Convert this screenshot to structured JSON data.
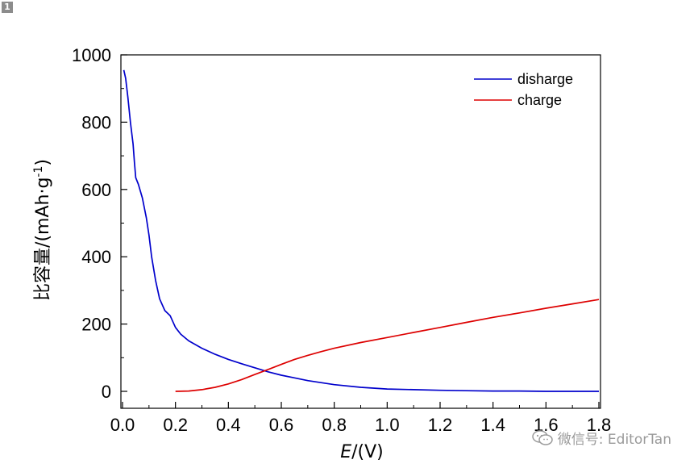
{
  "badge": "1",
  "watermark": {
    "text": "微信号: EditorTan",
    "icon": "wechat-icon"
  },
  "chart_data": {
    "type": "line",
    "xlabel_italic": "E",
    "xlabel_unit": "/(V)",
    "ylabel_main": "比容量/(mAh·g",
    "ylabel_sup": "-1",
    "ylabel_close": ")",
    "xlim": [
      0.0,
      1.8
    ],
    "ylim": [
      0,
      1000
    ],
    "xticks": [
      0.0,
      0.2,
      0.4,
      0.6,
      0.8,
      1.0,
      1.2,
      1.4,
      1.6,
      1.8
    ],
    "xtick_labels": [
      "0.0",
      "0.2",
      "0.4",
      "0.6",
      "0.8",
      "1.0",
      "1.2",
      "1.4",
      "1.6",
      "1.8"
    ],
    "yticks": [
      0,
      200,
      400,
      600,
      800,
      1000
    ],
    "ytick_labels": [
      "0",
      "200",
      "400",
      "600",
      "800",
      "1000"
    ],
    "legend_position": "top-right",
    "grid": false,
    "series": [
      {
        "name": "disharge",
        "color": "#0000cc",
        "x": [
          0.005,
          0.012,
          0.02,
          0.03,
          0.04,
          0.045,
          0.05,
          0.06,
          0.075,
          0.09,
          0.1,
          0.11,
          0.125,
          0.14,
          0.16,
          0.18,
          0.2,
          0.22,
          0.25,
          0.3,
          0.35,
          0.4,
          0.45,
          0.5,
          0.55,
          0.6,
          0.65,
          0.7,
          0.8,
          0.9,
          1.0,
          1.1,
          1.2,
          1.3,
          1.4,
          1.5,
          1.6,
          1.7,
          1.8
        ],
        "y": [
          955,
          930,
          875,
          800,
          735,
          680,
          635,
          615,
          575,
          515,
          465,
          400,
          330,
          275,
          240,
          225,
          190,
          170,
          150,
          128,
          110,
          95,
          82,
          70,
          58,
          48,
          40,
          32,
          20,
          12,
          7,
          5,
          3,
          2,
          1,
          1,
          0,
          0,
          0
        ]
      },
      {
        "name": "charge",
        "color": "#dd0000",
        "x": [
          0.2,
          0.25,
          0.3,
          0.35,
          0.4,
          0.45,
          0.5,
          0.55,
          0.6,
          0.65,
          0.7,
          0.75,
          0.8,
          0.9,
          1.0,
          1.1,
          1.2,
          1.3,
          1.4,
          1.5,
          1.6,
          1.7,
          1.8
        ],
        "y": [
          0,
          1,
          5,
          12,
          22,
          35,
          50,
          65,
          80,
          95,
          107,
          118,
          128,
          145,
          160,
          175,
          190,
          205,
          220,
          233,
          247,
          260,
          273
        ]
      }
    ]
  }
}
